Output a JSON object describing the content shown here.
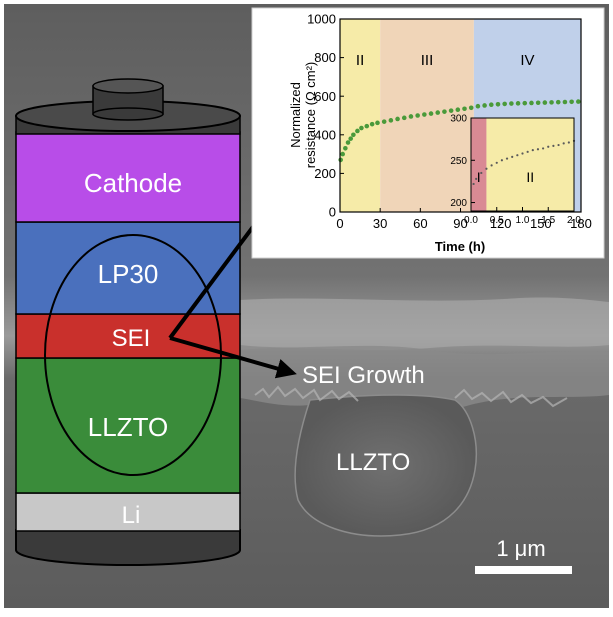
{
  "battery": {
    "cathode": "Cathode",
    "electrolyte": "LP30",
    "sei": "SEI",
    "solid_electrolyte": "LLZTO",
    "anode": "Li"
  },
  "micrograph": {
    "sei_growth": "SEI Growth",
    "substrate": "LLZTO",
    "scale_bar": "1 μm"
  },
  "colors": {
    "cathode": "#b84de8",
    "lp30": "#4a70bd",
    "sei": "#c9302c",
    "llzto": "#3a8c3a",
    "li": "#c8c8c8"
  },
  "chart_data": [
    {
      "type": "scatter",
      "xlabel": "Time (h)",
      "ylabel": "Normalized resistance (Ω cm²)",
      "xlim": [
        0,
        180
      ],
      "ylim": [
        0,
        1000
      ],
      "xticks": [
        "0",
        "30",
        "60",
        "90",
        "120",
        "150",
        "180"
      ],
      "yticks": [
        "0",
        "200",
        "400",
        "600",
        "800",
        "1000"
      ],
      "regions": [
        {
          "label": "II",
          "from": 0,
          "to": 30,
          "color": "#f6eba8"
        },
        {
          "label": "III",
          "from": 30,
          "to": 100,
          "color": "#f0d5b8"
        },
        {
          "label": "IV",
          "from": 100,
          "to": 180,
          "color": "#c0d0ea"
        }
      ],
      "series": [
        {
          "color": "#4a9a3a",
          "x": [
            0.5,
            2,
            4,
            6,
            8,
            10,
            13,
            16,
            20,
            24,
            28,
            33,
            38,
            43,
            48,
            53,
            58,
            63,
            68,
            73,
            78,
            83,
            88,
            93,
            98,
            103,
            108,
            113,
            118,
            123,
            128,
            133,
            138,
            143,
            148,
            153,
            158,
            163,
            168,
            173,
            178
          ],
          "y": [
            270,
            300,
            330,
            360,
            380,
            400,
            420,
            435,
            445,
            455,
            462,
            468,
            475,
            482,
            488,
            495,
            500,
            505,
            510,
            515,
            520,
            525,
            530,
            535,
            540,
            548,
            552,
            556,
            558,
            560,
            562,
            563,
            564,
            565,
            566,
            567,
            568,
            569,
            570,
            571,
            572
          ]
        }
      ],
      "grid": false
    },
    {
      "type": "scatter",
      "xlim": [
        0,
        2
      ],
      "ylim": [
        190,
        300
      ],
      "xticks": [
        "0.0",
        "0.5",
        "1.0",
        "1.5",
        "2.0"
      ],
      "yticks": [
        "200",
        "250",
        "300"
      ],
      "regions": [
        {
          "label": "I",
          "from": 0,
          "to": 0.3,
          "color": "#d98a94"
        },
        {
          "label": "II",
          "from": 0.3,
          "to": 2,
          "color": "#f6eba8"
        }
      ],
      "series": [
        {
          "color": "#5a5a5a",
          "x": [
            0.05,
            0.1,
            0.2,
            0.3,
            0.4,
            0.5,
            0.6,
            0.7,
            0.8,
            0.9,
            1.0,
            1.1,
            1.2,
            1.3,
            1.4,
            1.5,
            1.6,
            1.7,
            1.8,
            1.9,
            2.0
          ],
          "y": [
            222,
            228,
            235,
            240,
            244,
            247,
            250,
            252,
            254,
            256,
            258,
            260,
            262,
            263,
            264,
            266,
            267,
            268,
            270,
            271,
            273
          ]
        }
      ],
      "grid": false
    }
  ]
}
